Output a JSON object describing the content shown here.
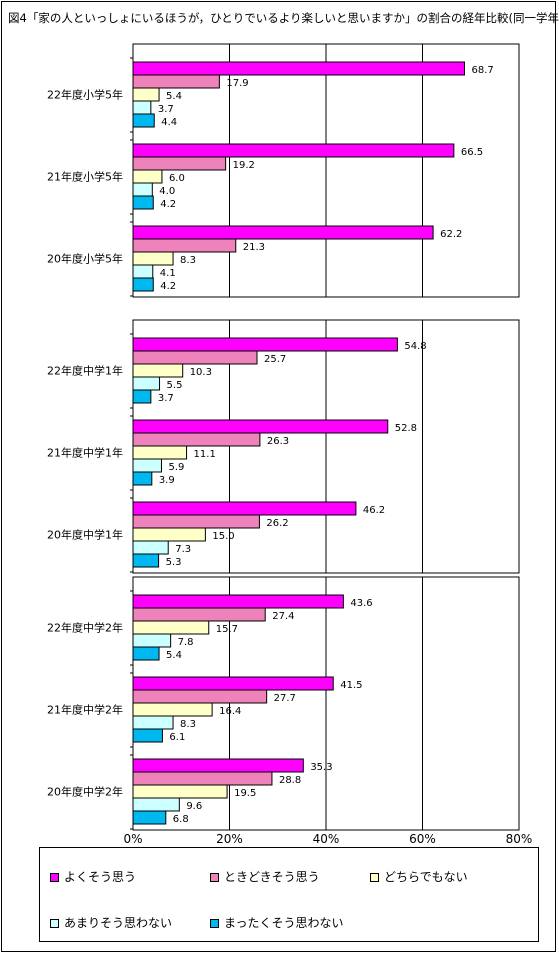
{
  "title": "図4「家の人といっしょにいるほうが，ひとりでいるより楽しいと思いますか」の割合の経年比較(同一学年)",
  "chart_data": {
    "type": "bar",
    "orientation": "horizontal",
    "series": [
      {
        "name": "よくそう思う",
        "color": "#ff00ff"
      },
      {
        "name": "ときどきそう思う",
        "color": "#ee82ba"
      },
      {
        "name": "どちらでもない",
        "color": "#ffffc8"
      },
      {
        "name": "あまりそう思わない",
        "color": "#ccffff"
      },
      {
        "name": "まったくそう思わない",
        "color": "#00b8f0"
      }
    ],
    "panels": [
      {
        "groups": [
          {
            "label": "22年度小学5年",
            "values": [
              68.7,
              17.9,
              5.4,
              3.7,
              4.4
            ]
          },
          {
            "label": "21年度小学5年",
            "values": [
              66.5,
              19.2,
              6.0,
              4.0,
              4.2
            ]
          },
          {
            "label": "20年度小学5年",
            "values": [
              62.2,
              21.3,
              8.3,
              4.1,
              4.2
            ]
          }
        ]
      },
      {
        "groups": [
          {
            "label": "22年度中学1年",
            "values": [
              54.8,
              25.7,
              10.3,
              5.5,
              3.7
            ]
          },
          {
            "label": "21年度中学1年",
            "values": [
              52.8,
              26.3,
              11.1,
              5.9,
              3.9
            ]
          },
          {
            "label": "20年度中学1年",
            "values": [
              46.2,
              26.2,
              15.0,
              7.3,
              5.3
            ]
          }
        ]
      },
      {
        "groups": [
          {
            "label": "22年度中学2年",
            "values": [
              43.6,
              27.4,
              15.7,
              7.8,
              5.4
            ]
          },
          {
            "label": "21年度中学2年",
            "values": [
              41.5,
              27.7,
              16.4,
              8.3,
              6.1
            ]
          },
          {
            "label": "20年度中学2年",
            "values": [
              35.3,
              28.8,
              19.5,
              9.6,
              6.8
            ]
          }
        ]
      }
    ],
    "xlim": [
      0,
      80
    ],
    "xticks": [
      "0%",
      "20%",
      "40%",
      "60%",
      "80%"
    ],
    "grid": true,
    "legend": "bottom"
  }
}
